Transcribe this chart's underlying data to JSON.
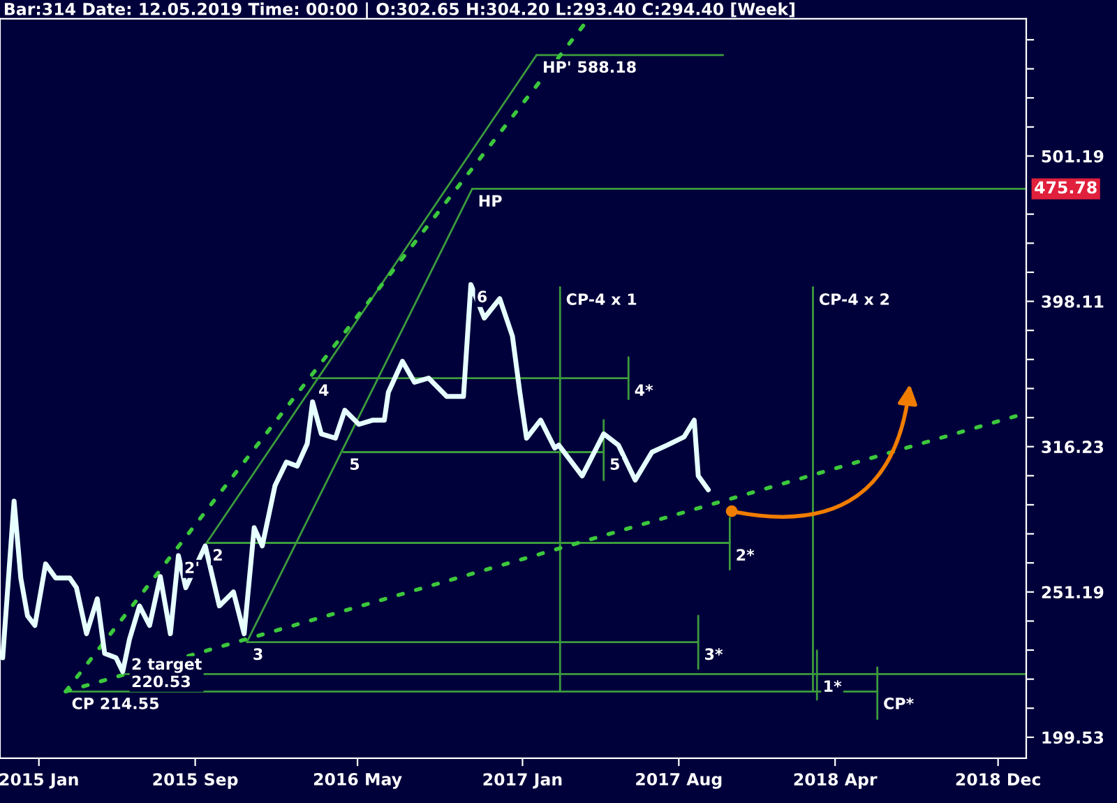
{
  "chart_data": {
    "type": "line",
    "title": "Bar:314 Date: 12.05.2019 Time: 00:00 | O:302.65 H:304.20 L:293.40 C:294.40 [Week]",
    "log": "y",
    "grid": false,
    "xlim": [
      "2014-11-18",
      "2019-01-26"
    ],
    "xticks": [
      {
        "value": "2015-01-15",
        "label": "2015 Jan"
      },
      {
        "value": "2015-09-05",
        "label": "2015 Sep"
      },
      {
        "value": "2016-05-04",
        "label": "2016 May"
      },
      {
        "value": "2017-01-05",
        "label": "2017 Jan"
      },
      {
        "value": "2017-08-26",
        "label": "2017 Aug"
      },
      {
        "value": "2018-04-16",
        "label": "2018 Apr"
      },
      {
        "value": "2018-12-15",
        "label": "2018 Dec"
      }
    ],
    "ylim": [
      193,
      623
    ],
    "yticks": [
      {
        "value": 199.53,
        "label": "199.53"
      },
      {
        "value": 208.93,
        "label": null
      },
      {
        "value": 218.78,
        "label": null
      },
      {
        "value": 229.09,
        "label": null
      },
      {
        "value": 239.88,
        "label": null
      },
      {
        "value": 251.19,
        "label": "251.19"
      },
      {
        "value": 263.03,
        "label": null
      },
      {
        "value": 275.42,
        "label": null
      },
      {
        "value": 288.4,
        "label": null
      },
      {
        "value": 301.99,
        "label": null
      },
      {
        "value": 316.23,
        "label": "316.23"
      },
      {
        "value": 331.13,
        "label": null
      },
      {
        "value": 346.74,
        "label": null
      },
      {
        "value": 363.08,
        "label": null
      },
      {
        "value": 380.19,
        "label": null
      },
      {
        "value": 398.11,
        "label": "398.11"
      },
      {
        "value": 416.87,
        "label": null
      },
      {
        "value": 436.52,
        "label": null
      },
      {
        "value": 457.09,
        "label": null
      },
      {
        "value": 501.19,
        "label": "501.19"
      },
      {
        "value": 524.81,
        "label": null
      },
      {
        "value": 549.54,
        "label": null
      },
      {
        "value": 575.44,
        "label": null
      },
      {
        "value": 602.56,
        "label": null
      }
    ],
    "series": [
      {
        "color": "#e6ffff",
        "x": [
          "2014-11-22",
          "2014-12-09",
          "2014-12-19",
          "2014-12-29",
          "2015-01-09",
          "2015-01-25",
          "2015-02-09",
          "2015-03-02",
          "2015-03-12",
          "2015-03-27",
          "2015-04-12",
          "2015-04-23",
          "2015-05-10",
          "2015-05-20",
          "2015-05-30",
          "2015-06-14",
          "2015-06-29",
          "2015-07-15",
          "2015-07-30",
          "2015-08-11",
          "2015-08-22",
          "2015-09-20",
          "2015-10-11",
          "2015-11-01",
          "2015-11-17",
          "2015-12-02",
          "2015-12-14",
          "2016-01-02",
          "2016-01-19",
          "2016-02-04",
          "2016-02-19",
          "2016-02-27",
          "2016-03-11",
          "2016-04-01",
          "2016-04-15",
          "2016-05-06",
          "2016-05-27",
          "2016-06-13",
          "2016-06-19",
          "2016-07-10",
          "2016-07-28",
          "2016-08-18",
          "2016-09-14",
          "2016-10-09",
          "2016-10-20",
          "2016-11-09",
          "2016-12-02",
          "2016-12-21",
          "2017-01-01",
          "2017-01-11",
          "2017-02-01",
          "2017-02-22",
          "2017-02-28",
          "2017-04-04",
          "2017-05-06",
          "2017-05-28",
          "2017-06-22",
          "2017-07-17",
          "2017-08-09",
          "2017-09-03",
          "2017-09-18",
          "2017-09-24",
          "2017-10-09"
        ],
        "values": [
          226.3,
          290.1,
          256.8,
          241.9,
          238.2,
          262.6,
          256.8,
          256.8,
          252.9,
          235.1,
          248.5,
          227.9,
          226.3,
          221.4,
          233.0,
          245.7,
          238.2,
          257.4,
          235.1,
          266.1,
          252.9,
          270.2,
          245.7,
          251.2,
          235.1,
          278.1,
          270.2,
          297.3,
          308.6,
          306.6,
          317.7,
          339.5,
          322.7,
          320.5,
          335.0,
          327.6,
          329.8,
          329.8,
          344.7,
          362.0,
          350.2,
          352.5,
          342.4,
          342.4,
          408.8,
          387.7,
          399.8,
          376.7,
          344.7,
          320.5,
          329.8,
          315.5,
          317.0,
          301.9,
          322.7,
          317.0,
          299.9,
          313.5,
          317.0,
          321.2,
          329.8,
          301.9,
          295.3
        ]
      },
      {
        "color": "#3c9c3c",
        "x": [
          "2017-01-26",
          "2017-10-31"
        ],
        "values": [
          588.18,
          588.18
        ]
      },
      {
        "color": "#3c9c3c",
        "x": [
          "2016-10-22",
          "2019-01-26"
        ],
        "values": [
          475.78,
          475.78
        ]
      },
      {
        "color": "#3c9c3c",
        "x": [
          "2015-09-22",
          "2017-01-26"
        ],
        "values": [
          271.5,
          588.18
        ]
      },
      {
        "color": "#3c9c3c",
        "x": [
          "2015-11-21",
          "2016-10-22"
        ],
        "values": [
          232.0,
          475.78
        ]
      },
      {
        "color": "#3c9c3c",
        "x": [
          "2016-02-27",
          "2017-06-12"
        ],
        "values": [
          352.5,
          352.5
        ]
      },
      {
        "color": "#3c9c3c",
        "x": [
          "2017-06-12",
          "2017-06-12"
        ],
        "values": [
          364.3,
          341.0
        ]
      },
      {
        "color": "#3c9c3c",
        "x": [
          "2016-04-13",
          "2017-05-06"
        ],
        "values": [
          313.5,
          313.5
        ]
      },
      {
        "color": "#3c9c3c",
        "x": [
          "2017-05-06",
          "2017-05-06"
        ],
        "values": [
          329.8,
          299.9
        ]
      },
      {
        "color": "#3c9c3c",
        "x": [
          "2015-09-22",
          "2017-11-10"
        ],
        "values": [
          271.5,
          271.5
        ]
      },
      {
        "color": "#3c9c3c",
        "x": [
          "2017-11-10",
          "2017-11-10"
        ],
        "values": [
          282.5,
          260.3
        ]
      },
      {
        "color": "#3c9c3c",
        "x": [
          "2015-11-21",
          "2017-09-24"
        ],
        "values": [
          232.0,
          232.0
        ]
      },
      {
        "color": "#3c9c3c",
        "x": [
          "2017-09-24",
          "2017-09-24"
        ],
        "values": [
          241.9,
          222.4
        ]
      },
      {
        "color": "#3c9c3c",
        "x": [
          "2015-05-24",
          "2019-01-26"
        ],
        "values": [
          220.53,
          220.53
        ]
      },
      {
        "color": "#3c9c3c",
        "x": [
          "2018-03-20",
          "2018-03-20"
        ],
        "values": [
          228.9,
          211.8
        ]
      },
      {
        "color": "#3c9c3c",
        "x": [
          "2015-02-24",
          "2018-06-18"
        ],
        "values": [
          214.55,
          214.55
        ]
      },
      {
        "color": "#3c9c3c",
        "x": [
          "2018-06-18",
          "2018-06-18"
        ],
        "values": [
          222.9,
          205.4
        ]
      },
      {
        "color": "#3c9c3c",
        "x": [
          "2017-03-02",
          "2017-03-02"
        ],
        "values": [
          407.1,
          214.55
        ]
      },
      {
        "color": "#3c9c3c",
        "x": [
          "2018-03-14",
          "2018-03-14"
        ],
        "values": [
          407.1,
          214.55
        ]
      },
      {
        "color": "#3cc83c",
        "line_style": "dotted",
        "x": [
          "2015-02-24",
          "2017-04-10"
        ],
        "values": [
          214.55,
          620
        ]
      },
      {
        "color": "#3cc83c",
        "line_style": "dotted",
        "x": [
          "2015-02-24",
          "2019-01-26"
        ],
        "values": [
          214.55,
          333.5
        ]
      }
    ],
    "annotations": [
      {
        "text": "HP' 588.18",
        "x": "2017-01-26",
        "y": 588.18
      },
      {
        "text": "HP",
        "x": "2016-10-22",
        "y": 475.78
      },
      {
        "text": "475.78",
        "x": "2019-01-26",
        "y": 475.78
      },
      {
        "text": "6",
        "x": "2016-10-20",
        "y": 408.8
      },
      {
        "text": "4",
        "x": "2016-02-27",
        "y": 352.5
      },
      {
        "text": "5",
        "x": "2016-04-13",
        "y": 313.5
      },
      {
        "text": "5",
        "x": "2017-05-06",
        "y": 313.5
      },
      {
        "text": "2'",
        "x": "2015-08-11",
        "y": 266.1
      },
      {
        "text": "2",
        "x": "2015-09-22",
        "y": 271.5
      },
      {
        "text": "3",
        "x": "2015-11-21",
        "y": 232.0
      },
      {
        "text": "2 target\n220.53",
        "x": "2015-05-24",
        "y": 220.53
      },
      {
        "text": "CP 214.55",
        "x": "2015-02-24",
        "y": 214.55
      },
      {
        "text": "CP-4 x 1",
        "x": "2017-03-02",
        "y": 407.1
      },
      {
        "text": "CP-4 x 2",
        "x": "2018-03-14",
        "y": 407.1
      },
      {
        "text": "4*",
        "x": "2017-06-12",
        "y": 352.5
      },
      {
        "text": "2*",
        "x": "2017-11-10",
        "y": 271.5
      },
      {
        "text": "3*",
        "x": "2017-09-24",
        "y": 232.0
      },
      {
        "text": "1*",
        "x": "2018-03-20",
        "y": 220.53
      },
      {
        "text": "CP*",
        "x": "2018-06-18",
        "y": 214.55
      }
    ]
  }
}
